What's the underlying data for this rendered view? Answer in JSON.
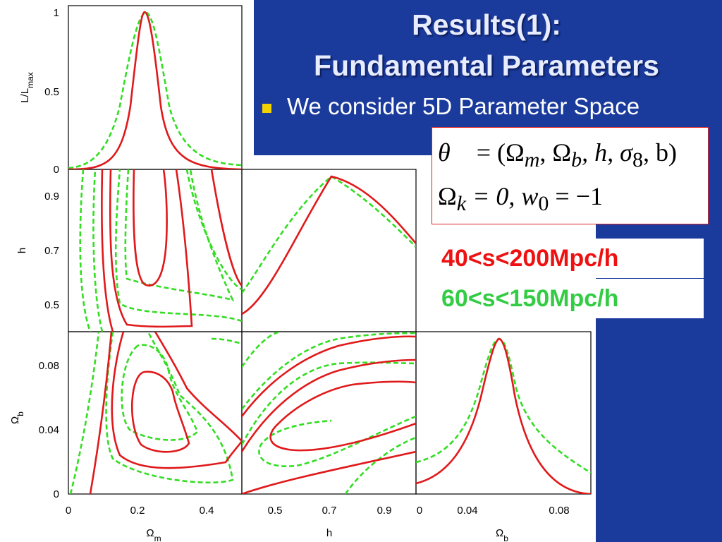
{
  "slide": {
    "title": [
      "Results(1):",
      "Fundamental Parameters"
    ],
    "bullet": "We consider 5D Parameter Space",
    "equations": [
      [
        "θ⃗",
        " = (Ω",
        "m",
        ", Ω",
        "b",
        ", h, σ",
        "8",
        ", b)"
      ],
      [
        "Ω",
        "k",
        " = 0, w",
        "0",
        " = −1"
      ]
    ],
    "ranges": [
      "40<s<200Mpc/h",
      "60<s<150Mpc/h"
    ],
    "plots": {
      "y_labels": [
        {
          "base": "L/L",
          "sub": "max"
        },
        {
          "base": "h"
        },
        {
          "base": "Ω",
          "sub": "b"
        }
      ],
      "x_labels": [
        {
          "base": "Ω",
          "sub": "m"
        },
        {
          "base": "h"
        },
        {
          "base": "Ω",
          "sub": "b"
        }
      ],
      "y_ticks": [
        [
          "1",
          "0.5",
          "0"
        ],
        [
          "0.9",
          "0.7",
          "0.5"
        ],
        [
          "0.08",
          "0.04",
          "0"
        ]
      ],
      "x_ticks": [
        [
          "0",
          "0.2",
          "0.4"
        ],
        [
          "0.5",
          "0.7",
          "0.9"
        ],
        [
          "0",
          "0.04",
          "0.08"
        ]
      ]
    }
  }
}
